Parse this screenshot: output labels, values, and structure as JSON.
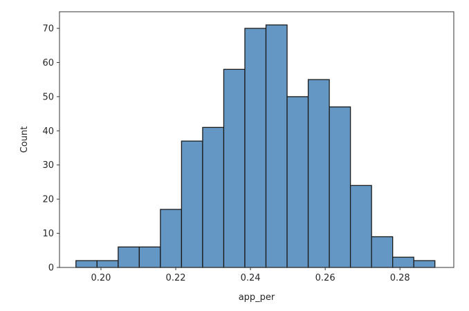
{
  "chart_data": {
    "type": "bar",
    "title": "",
    "xlabel": "app_per",
    "ylabel": "Count",
    "bin_start": 0.1933,
    "bin_width": 0.00565,
    "values": [
      2,
      2,
      6,
      6,
      17,
      37,
      41,
      58,
      70,
      71,
      50,
      55,
      47,
      24,
      9,
      3,
      2
    ],
    "xlim": [
      0.1889,
      0.2944
    ],
    "ylim": [
      0,
      74.86
    ],
    "xticks": [
      0.2,
      0.22,
      0.24,
      0.26,
      0.28
    ],
    "xtick_labels": [
      "0.20",
      "0.22",
      "0.24",
      "0.26",
      "0.28"
    ],
    "yticks": [
      0,
      10,
      20,
      30,
      40,
      50,
      60,
      70
    ],
    "ytick_labels": [
      "0",
      "10",
      "20",
      "30",
      "40",
      "50",
      "60",
      "70"
    ],
    "grid": false,
    "bar_color": "#6497c3",
    "edge_color": "#1a1a1a"
  }
}
